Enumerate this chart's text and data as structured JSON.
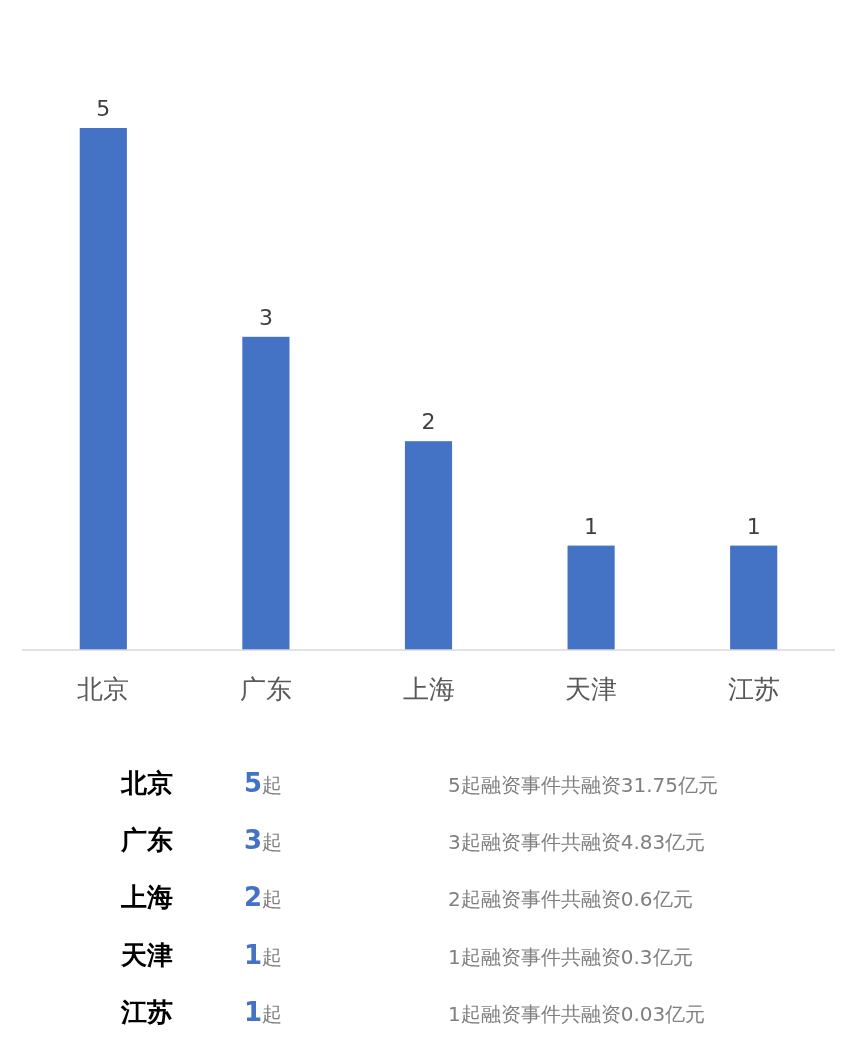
{
  "chart_data": {
    "type": "bar",
    "categories": [
      "北京",
      "广东",
      "上海",
      "天津",
      "江苏"
    ],
    "values": [
      5,
      3,
      2,
      1,
      1
    ],
    "color": "#4472c4",
    "data_labels": true,
    "annotations": [
      "北京",
      "5起",
      "5起融资事件共融资31.75亿元",
      "广东",
      "3起",
      "3起融资事件共融资4.83亿元",
      "上海",
      "2起",
      "2起融资事件共融资0.6亿元",
      "天津",
      "1起",
      "1起融资事件共融资0.3亿元",
      "江苏",
      "1起",
      "1起融资事件共融资0.03亿元"
    ]
  }
}
